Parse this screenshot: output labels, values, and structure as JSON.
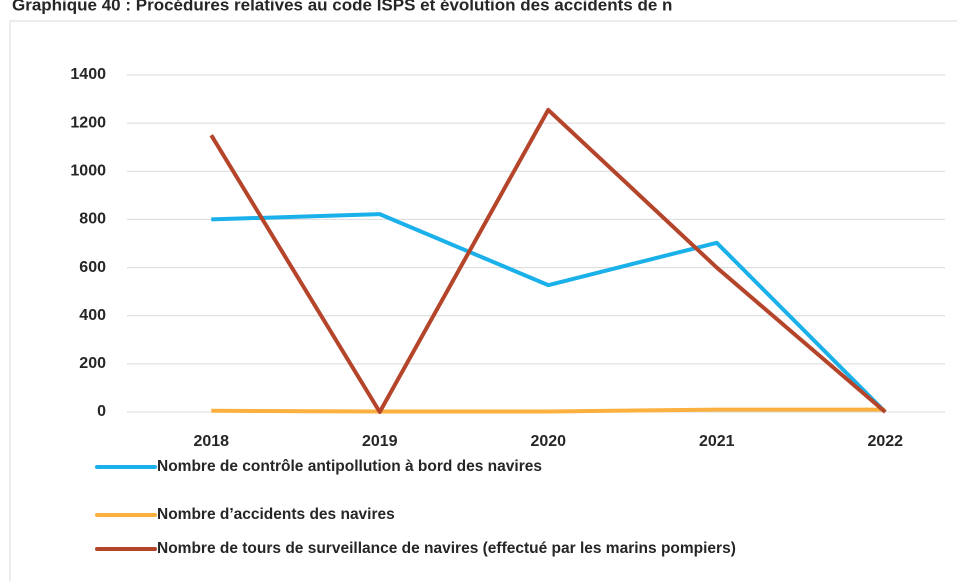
{
  "chart_data": {
    "type": "line",
    "title": "Graphique 40 : Procédures relatives au code ISPS et évolution des accidents de n",
    "categories": [
      "2018",
      "2019",
      "2020",
      "2021",
      "2022"
    ],
    "series": [
      {
        "name": "Nombre de contrôle antipollution à bord des navires",
        "color": "#1ab0ea",
        "values": [
          800,
          822,
          527,
          703,
          0
        ]
      },
      {
        "name": "Nombre d’accidents des navires",
        "color": "#fbb040",
        "values": [
          5,
          2,
          2,
          10,
          10
        ]
      },
      {
        "name": "Nombre de tours de surveillance de navires (effectué par les marins pompiers)",
        "color": "#b5452a",
        "values": [
          1150,
          0,
          1255,
          600,
          0
        ]
      }
    ],
    "ylim": [
      0,
      1400
    ],
    "yticks": [
      0,
      200,
      400,
      600,
      800,
      1000,
      1200,
      1400
    ],
    "grid": true,
    "legend": "bottom"
  }
}
